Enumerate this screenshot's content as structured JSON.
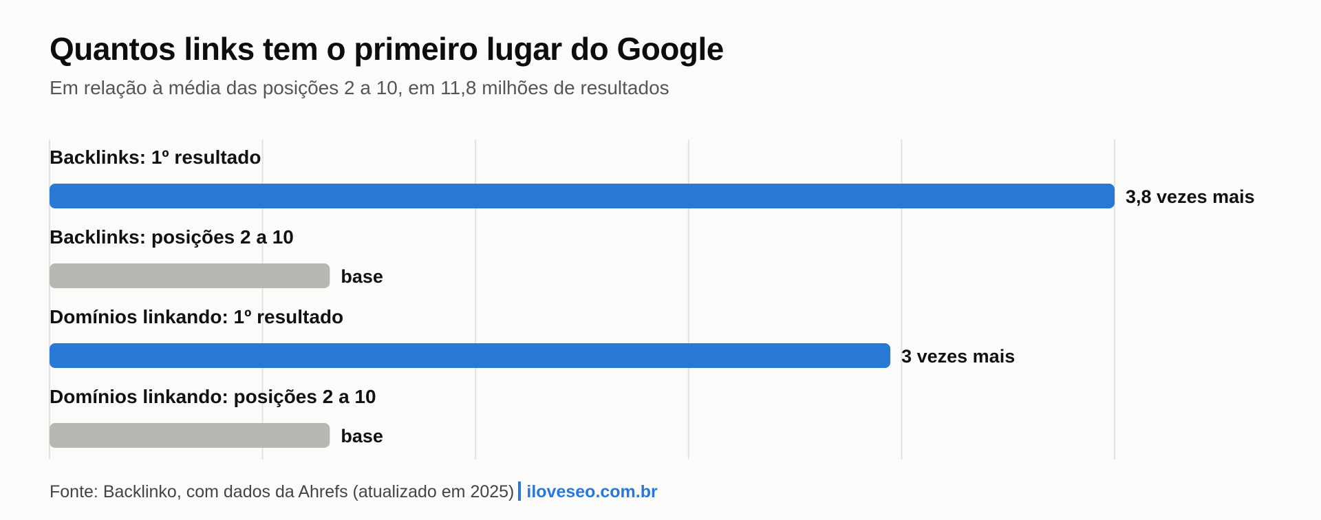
{
  "chart_data": {
    "type": "bar",
    "orientation": "horizontal",
    "title": "Quantos links tem o primeiro lugar do Google",
    "subtitle": "Em relação à média das posições 2 a 10, em 11,8 milhões de resultados",
    "categories": [
      "Backlinks: 1º resultado",
      "Backlinks: posições 2 a 10",
      "Domínios linkando: 1º resultado",
      "Domínios linkando: posições 2 a 10"
    ],
    "values": [
      3.8,
      1,
      3,
      1
    ],
    "value_labels": [
      "3,8 vezes mais",
      "base",
      "3 vezes mais",
      "base"
    ],
    "xlim": [
      0,
      3.8
    ],
    "grid": true,
    "colors": [
      "#2a78d6",
      "#b8b7b1",
      "#2a78d6",
      "#b8b7b1"
    ],
    "gridline_color": "#e2e2e0"
  },
  "footer": {
    "source": "Fonte: Backlinko, com dados da Ahrefs (atualizado em 2025)",
    "brand": "iloveseo.com.br"
  }
}
